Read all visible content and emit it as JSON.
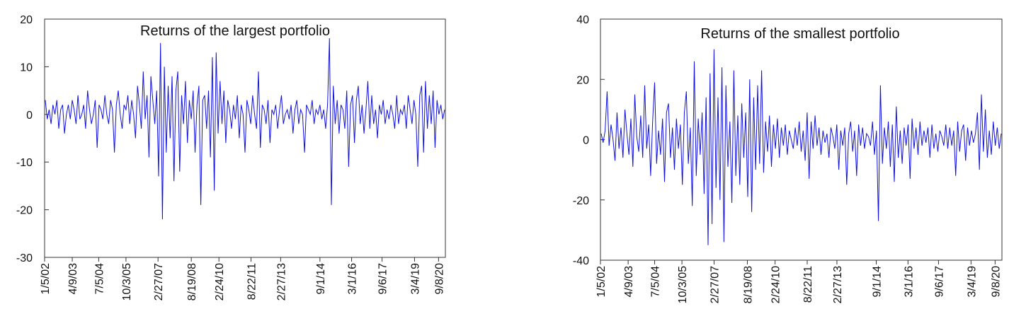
{
  "chart_data": [
    {
      "type": "line",
      "title": "Returns of the largest portfolio",
      "xlabel": "",
      "ylabel": "",
      "ylim": [
        -30,
        20
      ],
      "y_ticks": [
        20,
        10,
        0,
        -10,
        -20,
        -30
      ],
      "x_tick_labels": [
        "1/5/02",
        "4/9/03",
        "7/5/04",
        "10/3/05",
        "2/27/07",
        "8/19/08",
        "2/24/10",
        "8/22/11",
        "2/27/13",
        "9/1/14",
        "3/1/16",
        "9/6/17",
        "3/4/19",
        "9/8/20"
      ],
      "x_tick_positions": [
        0.0,
        0.069,
        0.135,
        0.203,
        0.283,
        0.366,
        0.435,
        0.515,
        0.589,
        0.687,
        0.766,
        0.842,
        0.923,
        0.983
      ],
      "series_color": "#1010e0",
      "series": [
        {
          "y": [
            3,
            -1,
            1,
            -2,
            2,
            0,
            3,
            -3,
            1,
            2,
            -4,
            0,
            2,
            -1,
            3,
            1,
            -2,
            4,
            -1,
            0,
            2,
            -3,
            5,
            1,
            -2,
            0,
            3,
            -7,
            2,
            1,
            -1,
            4,
            0,
            -2,
            3,
            1,
            -8,
            2,
            5,
            0,
            -3,
            2,
            1,
            4,
            -2,
            3,
            0,
            -5,
            6,
            2,
            -3,
            9,
            -1,
            4,
            -9,
            8,
            3,
            -2,
            5,
            -13,
            15,
            -22,
            10,
            -8,
            6,
            -5,
            8,
            -14,
            5,
            9,
            -12,
            4,
            -2,
            7,
            -6,
            3,
            -1,
            5,
            -8,
            2,
            6,
            -19,
            3,
            4,
            -3,
            5,
            -9,
            12,
            -16,
            13,
            -4,
            7,
            -2,
            5,
            -6,
            3,
            1,
            -3,
            2,
            -1,
            4,
            -5,
            2,
            0,
            -8,
            3,
            1,
            -2,
            4,
            0,
            -3,
            9,
            -7,
            2,
            1,
            -2,
            3,
            -6,
            1,
            0,
            2,
            -3,
            1,
            4,
            -2,
            0,
            1,
            -1,
            2,
            -4,
            1,
            3,
            -2,
            1,
            0,
            -8,
            2,
            1,
            0,
            3,
            -2,
            1,
            0,
            2,
            -1,
            1,
            -3,
            2,
            16,
            -19,
            6,
            -2,
            3,
            -4,
            2,
            1,
            -3,
            5,
            -11,
            2,
            4,
            -6,
            3,
            6,
            -2,
            2,
            -4,
            1,
            7,
            -3,
            4,
            -2,
            1,
            -5,
            2,
            0,
            3,
            -2,
            1,
            -1,
            2,
            0,
            -3,
            4,
            -2,
            1,
            0,
            2,
            -3,
            4,
            1,
            -2,
            3,
            0,
            -11,
            4,
            6,
            -8,
            7,
            -3,
            4,
            -2,
            5,
            -7,
            3,
            0,
            2,
            -1,
            1
          ]
        }
      ]
    },
    {
      "type": "line",
      "title": "Returns of the smallest portfolio",
      "xlabel": "",
      "ylabel": "",
      "ylim": [
        -40,
        40
      ],
      "y_ticks": [
        40,
        20,
        0,
        -20,
        -40
      ],
      "x_tick_labels": [
        "1/5/02",
        "4/9/03",
        "7/5/04",
        "10/3/05",
        "2/27/07",
        "8/19/08",
        "2/24/10",
        "8/22/11",
        "2/27/13",
        "9/1/14",
        "3/1/16",
        "9/6/17",
        "3/4/19",
        "9/8/20"
      ],
      "x_tick_positions": [
        0.0,
        0.069,
        0.135,
        0.203,
        0.283,
        0.366,
        0.435,
        0.515,
        0.589,
        0.687,
        0.766,
        0.842,
        0.923,
        0.983
      ],
      "series_color": "#1010e0",
      "series": [
        {
          "y": [
            2,
            -1,
            3,
            16,
            -2,
            5,
            0,
            -7,
            9,
            -3,
            4,
            -6,
            10,
            2,
            -5,
            7,
            -9,
            15,
            1,
            -4,
            8,
            -6,
            18,
            -3,
            5,
            -12,
            6,
            19,
            -8,
            3,
            -5,
            7,
            -14,
            9,
            12,
            -6,
            4,
            -10,
            7,
            -3,
            5,
            -15,
            9,
            16,
            -8,
            4,
            -22,
            26,
            -12,
            7,
            -5,
            9,
            -18,
            14,
            -35,
            22,
            -28,
            30,
            -16,
            14,
            -20,
            24,
            -34,
            18,
            -9,
            6,
            -21,
            23,
            -12,
            8,
            -15,
            12,
            -6,
            9,
            -19,
            20,
            -24,
            14,
            -10,
            18,
            -8,
            23,
            -11,
            6,
            -4,
            8,
            -9,
            5,
            -3,
            7,
            -6,
            4,
            -2,
            5,
            -5,
            3,
            0,
            -3,
            4,
            -2,
            6,
            -4,
            3,
            -7,
            9,
            -13,
            6,
            -3,
            8,
            -2,
            4,
            -5,
            3,
            -1,
            2,
            -6,
            4,
            1,
            -3,
            5,
            -10,
            3,
            -2,
            4,
            -15,
            2,
            6,
            -4,
            3,
            -12,
            5,
            -2,
            4,
            -3,
            2,
            1,
            -2,
            6,
            -5,
            3,
            -27,
            18,
            -8,
            4,
            -3,
            6,
            -9,
            5,
            -14,
            11,
            -6,
            3,
            -8,
            4,
            -2,
            5,
            -13,
            7,
            -3,
            4,
            -5,
            6,
            -2,
            3,
            -1,
            4,
            -6,
            5,
            -3,
            2,
            -4,
            3,
            1,
            -2,
            5,
            -3,
            4,
            -2,
            3,
            -12,
            6,
            -4,
            3,
            5,
            -7,
            4,
            -2,
            3,
            -1,
            2,
            9,
            -10,
            15,
            -4,
            10,
            -6,
            3,
            -5,
            6,
            -2,
            4,
            -3,
            2
          ]
        }
      ]
    }
  ]
}
